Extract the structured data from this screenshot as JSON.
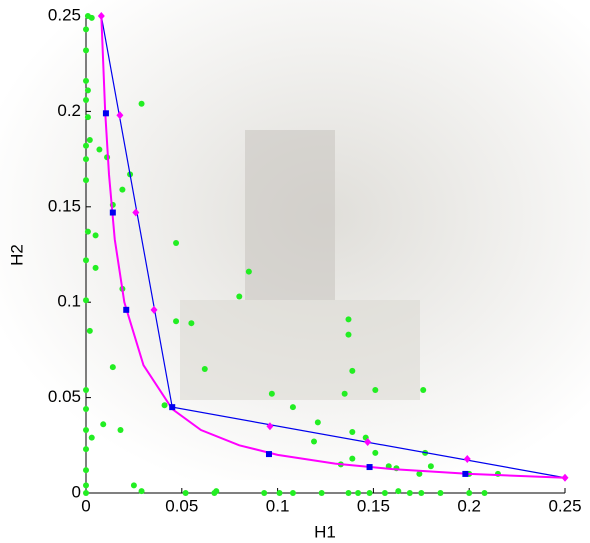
{
  "chart_data": {
    "type": "scatter",
    "x_label": "H1",
    "y_label": "H2",
    "xlim": [
      0,
      0.25
    ],
    "ylim": [
      0,
      0.25
    ],
    "xticks": [
      0,
      0.05,
      0.1,
      0.15,
      0.2,
      0.25
    ],
    "yticks": [
      0,
      0.05,
      0.1,
      0.15,
      0.2,
      0.25
    ],
    "series": [
      {
        "color": "#22ee22",
        "marker": "circle",
        "line": false,
        "x": [
          0.001,
          0.003,
          0,
          0,
          0,
          0.001,
          0,
          0.001,
          0.002,
          0,
          0,
          0,
          0.001,
          0.005,
          0,
          0.005,
          0,
          0.002,
          0,
          0,
          0,
          0.003,
          0,
          0,
          0,
          0,
          0.029,
          0.023,
          0.011,
          0.019,
          0.014,
          0.007,
          0.047,
          0.085,
          0.08,
          0.019,
          0.014,
          0.009,
          0.018,
          0.047,
          0.055,
          0.062,
          0.041,
          0.097,
          0.108,
          0.137,
          0.137,
          0.139,
          0.151,
          0.176,
          0.135,
          0.121,
          0.119,
          0.139,
          0.146,
          0.139,
          0.151,
          0.133,
          0.158,
          0.177,
          0.18,
          0.162,
          0.174,
          0.2,
          0.215,
          0.025,
          0.029,
          0.052,
          0.067,
          0.068,
          0.093,
          0.101,
          0.108,
          0.123,
          0.137,
          0.142,
          0.148,
          0.156,
          0.163,
          0.169,
          0.175,
          0.185,
          0.2,
          0.208
        ],
        "values": [
          0.25,
          0.249,
          0.243,
          0.232,
          0.216,
          0.211,
          0.206,
          0.197,
          0.185,
          0.182,
          0.175,
          0.164,
          0.137,
          0.135,
          0.122,
          0.118,
          0.101,
          0.085,
          0.054,
          0.044,
          0.033,
          0.029,
          0.023,
          0.012,
          0.004,
          0,
          0.204,
          0.167,
          0.176,
          0.159,
          0.151,
          0.18,
          0.131,
          0.116,
          0.103,
          0.107,
          0.066,
          0.036,
          0.033,
          0.09,
          0.089,
          0.065,
          0.046,
          0.052,
          0.045,
          0.091,
          0.083,
          0.064,
          0.054,
          0.054,
          0.052,
          0.037,
          0.027,
          0.032,
          0.029,
          0.018,
          0.021,
          0.015,
          0.014,
          0.021,
          0.014,
          0.013,
          0.01,
          0.01,
          0.01,
          0.004,
          0.001,
          0,
          0,
          0.001,
          0,
          0,
          0,
          0,
          0,
          0,
          0,
          0,
          0.001,
          0,
          0,
          0,
          0,
          0
        ]
      },
      {
        "color": "#0000ee",
        "marker": "none",
        "line": true,
        "x": [
          0.008,
          0.045,
          0.25
        ],
        "values": [
          0.25,
          0.045,
          0.008
        ]
      },
      {
        "color": "#ff00ff",
        "marker": "none",
        "line": true,
        "x": [
          0.008,
          0.01,
          0.012,
          0.015,
          0.02,
          0.03,
          0.045,
          0.06,
          0.08,
          0.1,
          0.13,
          0.16,
          0.2,
          0.25
        ],
        "values": [
          0.25,
          0.2,
          0.167,
          0.133,
          0.1,
          0.067,
          0.044,
          0.033,
          0.025,
          0.02,
          0.0154,
          0.0125,
          0.01,
          0.008
        ]
      },
      {
        "color": "#0000ee",
        "marker": "square",
        "line": false,
        "x": [
          0.0104,
          0.014,
          0.021,
          0.045,
          0.0955,
          0.148,
          0.198
        ],
        "values": [
          0.199,
          0.147,
          0.096,
          0.045,
          0.0204,
          0.0136,
          0.01
        ]
      },
      {
        "color": "#ff00ff",
        "marker": "diamond",
        "line": false,
        "x": [
          0.008,
          0.0177,
          0.026,
          0.0355,
          0.096,
          0.147,
          0.199,
          0.25
        ],
        "values": [
          0.25,
          0.198,
          0.147,
          0.096,
          0.035,
          0.0267,
          0.0178,
          0.008
        ]
      }
    ]
  }
}
